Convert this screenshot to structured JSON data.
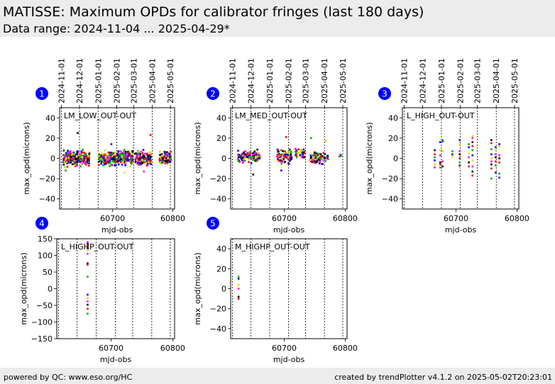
{
  "header": {
    "title": "MATISSE: Maximum OPDs for calibrator fringes (last 180 days)",
    "subtitle": "Data range: 2024-11-04 ... 2025-04-29*"
  },
  "footer": {
    "left": "powered by QC: www.eso.org/HC",
    "right": "created by trendPlotter v4.1.2 on 2025-05-02T20:23:01"
  },
  "colors": {
    "badge": "#0000ff",
    "dashed_lines": "#000000"
  },
  "date_tick_labels": [
    "2024-11-01",
    "2024-12-01",
    "2025-01-01",
    "2025-02-01",
    "2025-03-01",
    "2025-04-01",
    "2025-05-01"
  ],
  "date_tick_mjd": [
    60615,
    60645,
    60676,
    60707,
    60735,
    60766,
    60796
  ],
  "chart_data": [
    {
      "type": "scatter",
      "badge": "1",
      "label": "LM_LOW_OUT-OUT",
      "xlabel": "mjd-obs",
      "ylabel": "max_opd(microns)",
      "xlim": [
        60612,
        60803
      ],
      "ylim": [
        -50,
        50
      ],
      "yticks": [
        -40,
        -20,
        0,
        20,
        40
      ],
      "xticks": [
        60700,
        60800
      ],
      "series_colors": [
        "#000000",
        "#ff0000",
        "#00aa00",
        "#0000ff",
        "#dddd00",
        "#ff00ff"
      ],
      "clusters": [
        {
          "x": [
            60618,
            60644
          ],
          "y_center": 0,
          "y_spread": 7,
          "n": 160
        },
        {
          "x": [
            60646,
            60662
          ],
          "y_center": 0,
          "y_spread": 6,
          "n": 90
        },
        {
          "x": [
            60677,
            60706
          ],
          "y_center": 0,
          "y_spread": 6,
          "n": 150
        },
        {
          "x": [
            60707,
            60734
          ],
          "y_center": 0,
          "y_spread": 6,
          "n": 150
        },
        {
          "x": [
            60737,
            60764
          ],
          "y_center": 0,
          "y_spread": 6,
          "n": 150
        },
        {
          "x": [
            60778,
            60797
          ],
          "y_center": 0,
          "y_spread": 5,
          "n": 110
        }
      ],
      "outliers": [
        {
          "x": 60642,
          "y": 25
        },
        {
          "x": 60763,
          "y": 23
        },
        {
          "x": 60622,
          "y": -12
        },
        {
          "x": 60698,
          "y": 14
        },
        {
          "x": 60720,
          "y": -14
        },
        {
          "x": 60752,
          "y": -13
        }
      ]
    },
    {
      "type": "scatter",
      "badge": "2",
      "label": "LM_MED_OUT-OUT",
      "xlabel": "mjd-obs",
      "ylabel": "max_opd(microns)",
      "xlim": [
        60612,
        60803
      ],
      "ylim": [
        -50,
        50
      ],
      "yticks": [
        -40,
        -20,
        0,
        20,
        40
      ],
      "xticks": [
        60700,
        60800
      ],
      "series_colors": [
        "#000000",
        "#ff0000",
        "#00aa00",
        "#0000ff",
        "#dddd00",
        "#ff00ff"
      ],
      "clusters": [
        {
          "x": [
            60624,
            60660
          ],
          "y_center": 2,
          "y_spread": 5,
          "n": 110
        },
        {
          "x": [
            60688,
            60712
          ],
          "y_center": 2,
          "y_spread": 7,
          "n": 100
        },
        {
          "x": [
            60718,
            60734
          ],
          "y_center": 5,
          "y_spread": 5,
          "n": 40
        },
        {
          "x": [
            60742,
            60772
          ],
          "y_center": 0,
          "y_spread": 5,
          "n": 80
        },
        {
          "x": [
            60790,
            60794
          ],
          "y_center": 2,
          "y_spread": 2,
          "n": 6
        }
      ],
      "outliers": [
        {
          "x": 60649,
          "y": -16
        },
        {
          "x": 60703,
          "y": 21
        },
        {
          "x": 60744,
          "y": 20
        },
        {
          "x": 60695,
          "y": -12
        },
        {
          "x": 60768,
          "y": 17
        }
      ]
    },
    {
      "type": "scatter",
      "badge": "3",
      "label": "L_HIGH_OUT-OUT",
      "xlabel": "mjd-obs",
      "ylabel": "max_opd(microns)",
      "xlim": [
        60612,
        60803
      ],
      "ylim": [
        -50,
        50
      ],
      "yticks": [
        -40,
        -20,
        0,
        20,
        40
      ],
      "xticks": [
        60700,
        60800
      ],
      "series_colors": [
        "#000000",
        "#ff0000",
        "#00aa00",
        "#0000ff",
        "#dddd00",
        "#ff00ff"
      ],
      "columns": [
        {
          "x": 60665,
          "y": [
            -9,
            -6,
            -2,
            1,
            4,
            8
          ]
        },
        {
          "x": 60674,
          "y": [
            -9,
            -6,
            -4,
            3,
            8,
            16
          ]
        },
        {
          "x": 60678,
          "y": [
            -8,
            -3,
            7,
            17,
            18
          ]
        },
        {
          "x": 60694,
          "y": [
            2,
            4,
            7
          ]
        },
        {
          "x": 60706,
          "y": [
            -9,
            -7,
            -4,
            0,
            4,
            7,
            14,
            18
          ]
        },
        {
          "x": 60721,
          "y": [
            -8,
            -4,
            1,
            5,
            11,
            14
          ]
        },
        {
          "x": 60727,
          "y": [
            -17,
            -13,
            -8,
            -2,
            3,
            8,
            12,
            16,
            20,
            22
          ]
        },
        {
          "x": 60758,
          "y": [
            -20,
            -10,
            -6,
            -3,
            0,
            4,
            9,
            15,
            18
          ]
        },
        {
          "x": 60765,
          "y": [
            -14,
            -7,
            -3,
            1,
            4,
            8,
            11
          ]
        },
        {
          "x": 60771,
          "y": [
            -19,
            -15,
            -4,
            0,
            3,
            12,
            14
          ]
        }
      ]
    },
    {
      "type": "scatter",
      "badge": "4",
      "label": "L_HIGHP_OUT-OUT",
      "xlabel": "mjd-obs",
      "ylabel": "max_opd(microns)",
      "xlim": [
        60612,
        60803
      ],
      "ylim": [
        -150,
        150
      ],
      "yticks": [
        -150,
        -100,
        -50,
        0,
        50,
        100,
        150
      ],
      "xticks": [
        60700,
        60800
      ],
      "series_colors": [
        "#000000",
        "#ff0000",
        "#00aa00",
        "#0000ff",
        "#dddd00",
        "#ff00ff"
      ],
      "columns": [
        {
          "x": 60662,
          "y": [
            -75,
            -60,
            -48,
            -38,
            -28,
            -18,
            36,
            72,
            76,
            105,
            115,
            122,
            128,
            133,
            137,
            140
          ]
        }
      ]
    },
    {
      "type": "scatter",
      "badge": "5",
      "label": "M_HIGHP_OUT-OUT",
      "xlabel": "mjd-obs",
      "ylabel": "max_opd(microns)",
      "xlim": [
        60612,
        60803
      ],
      "ylim": [
        -50,
        50
      ],
      "yticks": [
        -40,
        -20,
        0,
        20,
        40
      ],
      "xticks": [
        60700,
        60800
      ],
      "series_colors": [
        "#000000",
        "#ff0000",
        "#00aa00",
        "#0000ff",
        "#dddd00",
        "#ff00ff"
      ],
      "columns": [
        {
          "x": 60625,
          "y": [
            -10,
            -8,
            0,
            4,
            10,
            12
          ]
        }
      ]
    }
  ]
}
